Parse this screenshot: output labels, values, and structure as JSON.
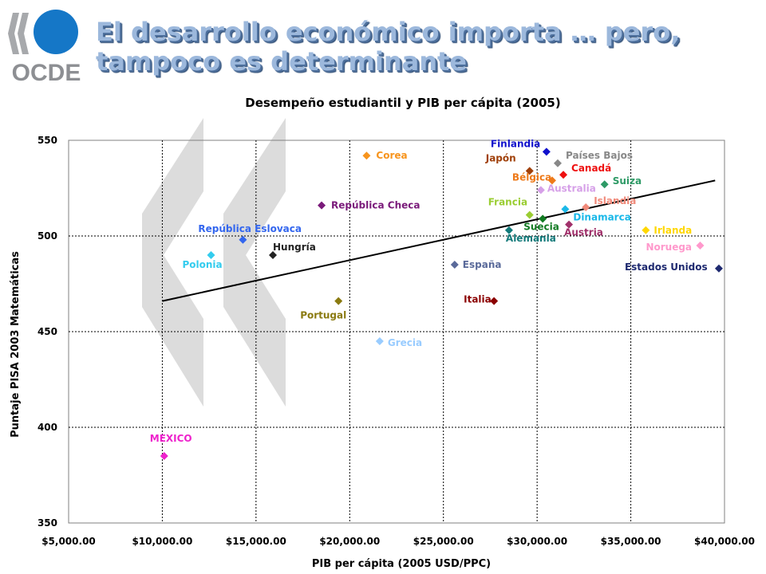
{
  "slide": {
    "logo_text": "OCDE",
    "title_line1": "El desarrollo económico importa … pero,",
    "title_line2": "tampoco  es determinante"
  },
  "chart_data": {
    "type": "scatter",
    "title": "Desempeño estudiantil y PIB per cápita (2005)",
    "xlabel": "PIB per cápita (2005 USD/PPC)",
    "ylabel": "Puntaje PISA 2003 Matemáticas",
    "xlim": [
      5000,
      40000
    ],
    "ylim": [
      350,
      550
    ],
    "x_ticks": [
      5000,
      10000,
      15000,
      20000,
      25000,
      30000,
      35000,
      40000
    ],
    "x_tick_labels": [
      "$5,000.00",
      "$10,000.00",
      "$15,000.00",
      "$20,000.00",
      "$25,000.00",
      "$30,000.00",
      "$35,000.00",
      "$40,000.00"
    ],
    "y_ticks": [
      350,
      400,
      450,
      500,
      550
    ],
    "y_tick_labels": [
      "350",
      "400",
      "450",
      "500",
      "550"
    ],
    "grid": true,
    "trendline": {
      "x": [
        10000,
        39500
      ],
      "y": [
        466,
        529
      ]
    },
    "points": [
      {
        "label": "Finlandia",
        "x": 30500,
        "y": 544,
        "color": "#1111cc"
      },
      {
        "label": "Países Bajos",
        "x": 31100,
        "y": 538,
        "color": "#888888"
      },
      {
        "label": "Japón",
        "x": 29600,
        "y": 534,
        "color": "#a0400a"
      },
      {
        "label": "Canadá",
        "x": 31400,
        "y": 532,
        "color": "#ee1111"
      },
      {
        "label": "Bélgica",
        "x": 30800,
        "y": 529,
        "color": "#ee7a1a"
      },
      {
        "label": "Suiza",
        "x": 33600,
        "y": 527,
        "color": "#2e9a66"
      },
      {
        "label": "Australia",
        "x": 30200,
        "y": 524,
        "color": "#d6a0e8"
      },
      {
        "label": "Islandia",
        "x": 32600,
        "y": 515,
        "color": "#f08a7a"
      },
      {
        "label": "Corea",
        "x": 20900,
        "y": 542,
        "color": "#f7941d"
      },
      {
        "label": "República Checa",
        "x": 18500,
        "y": 516,
        "color": "#7a1a7a"
      },
      {
        "label": "Francia",
        "x": 29600,
        "y": 511,
        "color": "#9acd32"
      },
      {
        "label": "Dinamarca",
        "x": 31500,
        "y": 514,
        "color": "#1ab8e8"
      },
      {
        "label": "Suecia",
        "x": 30300,
        "y": 509,
        "color": "#117a22"
      },
      {
        "label": "Alemania",
        "x": 28500,
        "y": 503,
        "color": "#137a7a"
      },
      {
        "label": "Austria",
        "x": 31700,
        "y": 506,
        "color": "#a0306a"
      },
      {
        "label": "Irlanda",
        "x": 35800,
        "y": 503,
        "color": "#ffd700"
      },
      {
        "label": "Noruega",
        "x": 38700,
        "y": 495,
        "color": "#ff99cc"
      },
      {
        "label": "Estados Unidos",
        "x": 39700,
        "y": 483,
        "color": "#1f2a70"
      },
      {
        "label": "República Eslovaca",
        "x": 14300,
        "y": 498,
        "color": "#3366ee"
      },
      {
        "label": "Hungría",
        "x": 15900,
        "y": 490,
        "color": "#222222"
      },
      {
        "label": "Polonia",
        "x": 12600,
        "y": 490,
        "color": "#33ccee"
      },
      {
        "label": "España",
        "x": 25600,
        "y": 485,
        "color": "#5a6a9a"
      },
      {
        "label": "Italia",
        "x": 27700,
        "y": 466,
        "color": "#8b0000"
      },
      {
        "label": "Portugal",
        "x": 19400,
        "y": 466,
        "color": "#8a7a10"
      },
      {
        "label": "Grecia",
        "x": 21600,
        "y": 445,
        "color": "#99ccff"
      },
      {
        "label": "MEXICO",
        "x": 10100,
        "y": 385,
        "color": "#ee22cc"
      }
    ]
  }
}
